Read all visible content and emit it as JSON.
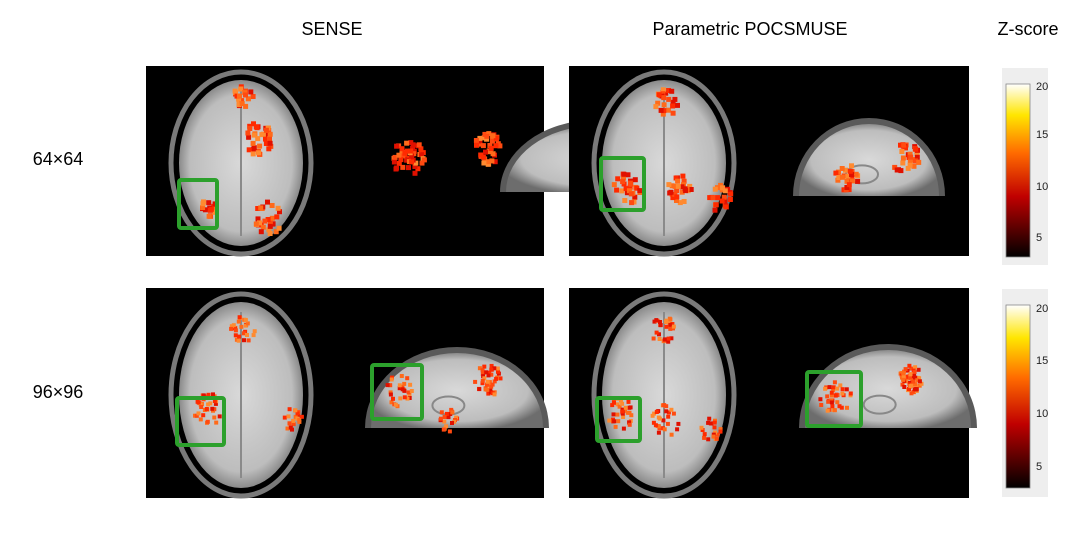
{
  "columns": [
    "SENSE",
    "Parametric POCSMUSE"
  ],
  "colorbar_title": "Z-score",
  "rows": [
    "64×64",
    "96×96"
  ],
  "colorbars": [
    {
      "ticks": [
        "20",
        "15",
        "10",
        "5"
      ]
    },
    {
      "ticks": [
        "20",
        "15",
        "10",
        "5"
      ]
    }
  ]
}
